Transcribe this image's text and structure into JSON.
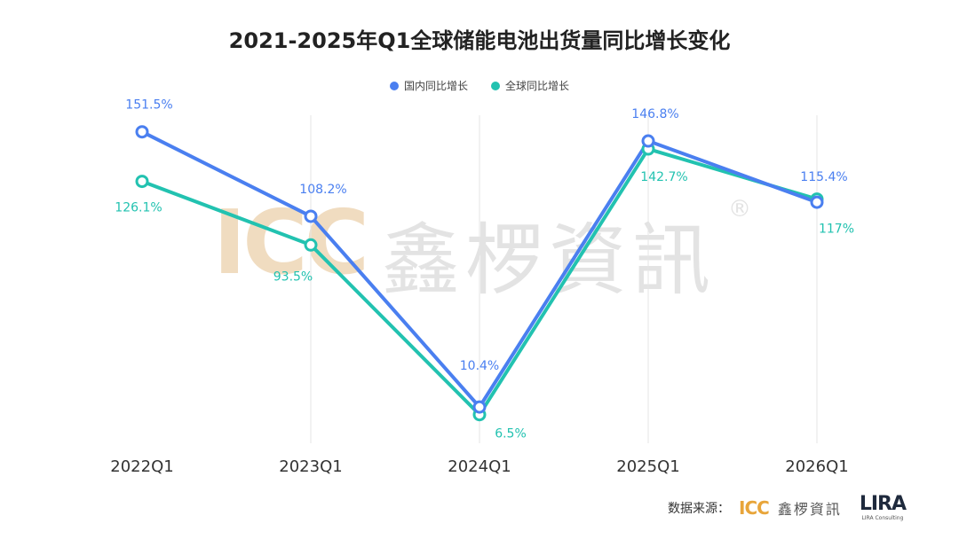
{
  "chart_data": {
    "type": "line",
    "title": "2021-2025年Q1全球储能电池出货量同比增长变化",
    "categories": [
      "2022Q1",
      "2023Q1",
      "2024Q1",
      "2025Q1",
      "2026Q1"
    ],
    "series": [
      {
        "name": "国内同比增长",
        "color": "#4a7ff0",
        "values": [
          151.5,
          108.2,
          10.4,
          146.8,
          115.4
        ],
        "labels": [
          "151.5%",
          "108.2%",
          "10.4%",
          "146.8%",
          "115.4%"
        ]
      },
      {
        "name": "全球同比增长",
        "color": "#22c2b0",
        "values": [
          126.1,
          93.5,
          6.5,
          142.7,
          117
        ],
        "labels": [
          "126.1%",
          "93.5%",
          "6.5%",
          "142.7%",
          "117%"
        ]
      }
    ],
    "ylim": [
      0,
      160
    ],
    "grid": "vertical",
    "legend": "top-center"
  },
  "source": {
    "label": "数据来源：",
    "brand": "ICC",
    "brand_cn": "鑫椤資訊",
    "partner": "LIRA",
    "partner_sub": "LIRA Consulting"
  },
  "watermark": {
    "brand": "ICC",
    "brand_cn": "鑫椤資訊",
    "reg": "®"
  }
}
